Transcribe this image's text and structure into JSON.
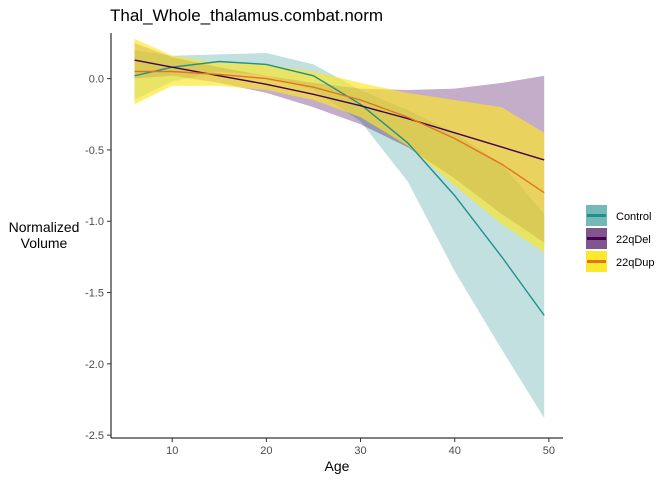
{
  "chart_data": {
    "type": "line",
    "title": "Thal_Whole_thalamus.combat.norm",
    "xlabel": "Age",
    "ylabel": [
      "Normalized",
      "Volume"
    ],
    "xlim": [
      3.5,
      51.5
    ],
    "ylim": [
      -2.52,
      0.32
    ],
    "xticks": [
      10,
      20,
      30,
      40,
      50
    ],
    "yticks": [
      0.0,
      -0.5,
      -1.0,
      -1.5,
      -2.0,
      -2.5
    ],
    "xtick_labels": [
      "10",
      "20",
      "30",
      "40",
      "50"
    ],
    "ytick_labels": [
      "0.0",
      "-0.5",
      "-1.0",
      "-1.5",
      "-2.0",
      "-2.5"
    ],
    "grid": false,
    "legend_position": "right",
    "x": [
      6,
      10,
      15,
      20,
      25,
      30,
      35,
      40,
      45,
      49.5
    ],
    "series": [
      {
        "name": "Control",
        "line_color": "#21908C",
        "fill_color": "#21908C",
        "fill_opacity": 0.28,
        "values": [
          0.02,
          0.08,
          0.12,
          0.1,
          0.02,
          -0.18,
          -0.45,
          -0.82,
          -1.25,
          -1.66
        ],
        "lower": [
          -0.15,
          -0.02,
          0.05,
          0.02,
          -0.08,
          -0.3,
          -0.72,
          -1.35,
          -1.9,
          -2.38
        ],
        "upper": [
          0.2,
          0.16,
          0.17,
          0.18,
          0.1,
          -0.08,
          -0.22,
          -0.38,
          -0.6,
          -0.95
        ]
      },
      {
        "name": "22qDel",
        "line_color": "#440154",
        "fill_color": "#440154",
        "fill_opacity": 0.32,
        "values": [
          0.13,
          0.08,
          0.02,
          -0.04,
          -0.11,
          -0.19,
          -0.28,
          -0.38,
          -0.48,
          -0.57
        ],
        "lower": [
          0.0,
          0.02,
          -0.03,
          -0.1,
          -0.2,
          -0.32,
          -0.48,
          -0.7,
          -0.95,
          -1.15
        ],
        "upper": [
          0.25,
          0.15,
          0.08,
          0.02,
          -0.03,
          -0.07,
          -0.08,
          -0.07,
          -0.03,
          0.02
        ]
      },
      {
        "name": "22qDup",
        "line_color": "#E3741E",
        "fill_color": "#FDE725",
        "fill_opacity": 0.65,
        "values": [
          0.05,
          0.05,
          0.03,
          0.0,
          -0.06,
          -0.15,
          -0.27,
          -0.42,
          -0.6,
          -0.8
        ],
        "lower": [
          -0.18,
          -0.05,
          -0.05,
          -0.08,
          -0.15,
          -0.27,
          -0.47,
          -0.75,
          -1.02,
          -1.22
        ],
        "upper": [
          0.28,
          0.16,
          0.11,
          0.1,
          0.05,
          -0.03,
          -0.1,
          -0.15,
          -0.2,
          -0.38
        ]
      }
    ]
  }
}
